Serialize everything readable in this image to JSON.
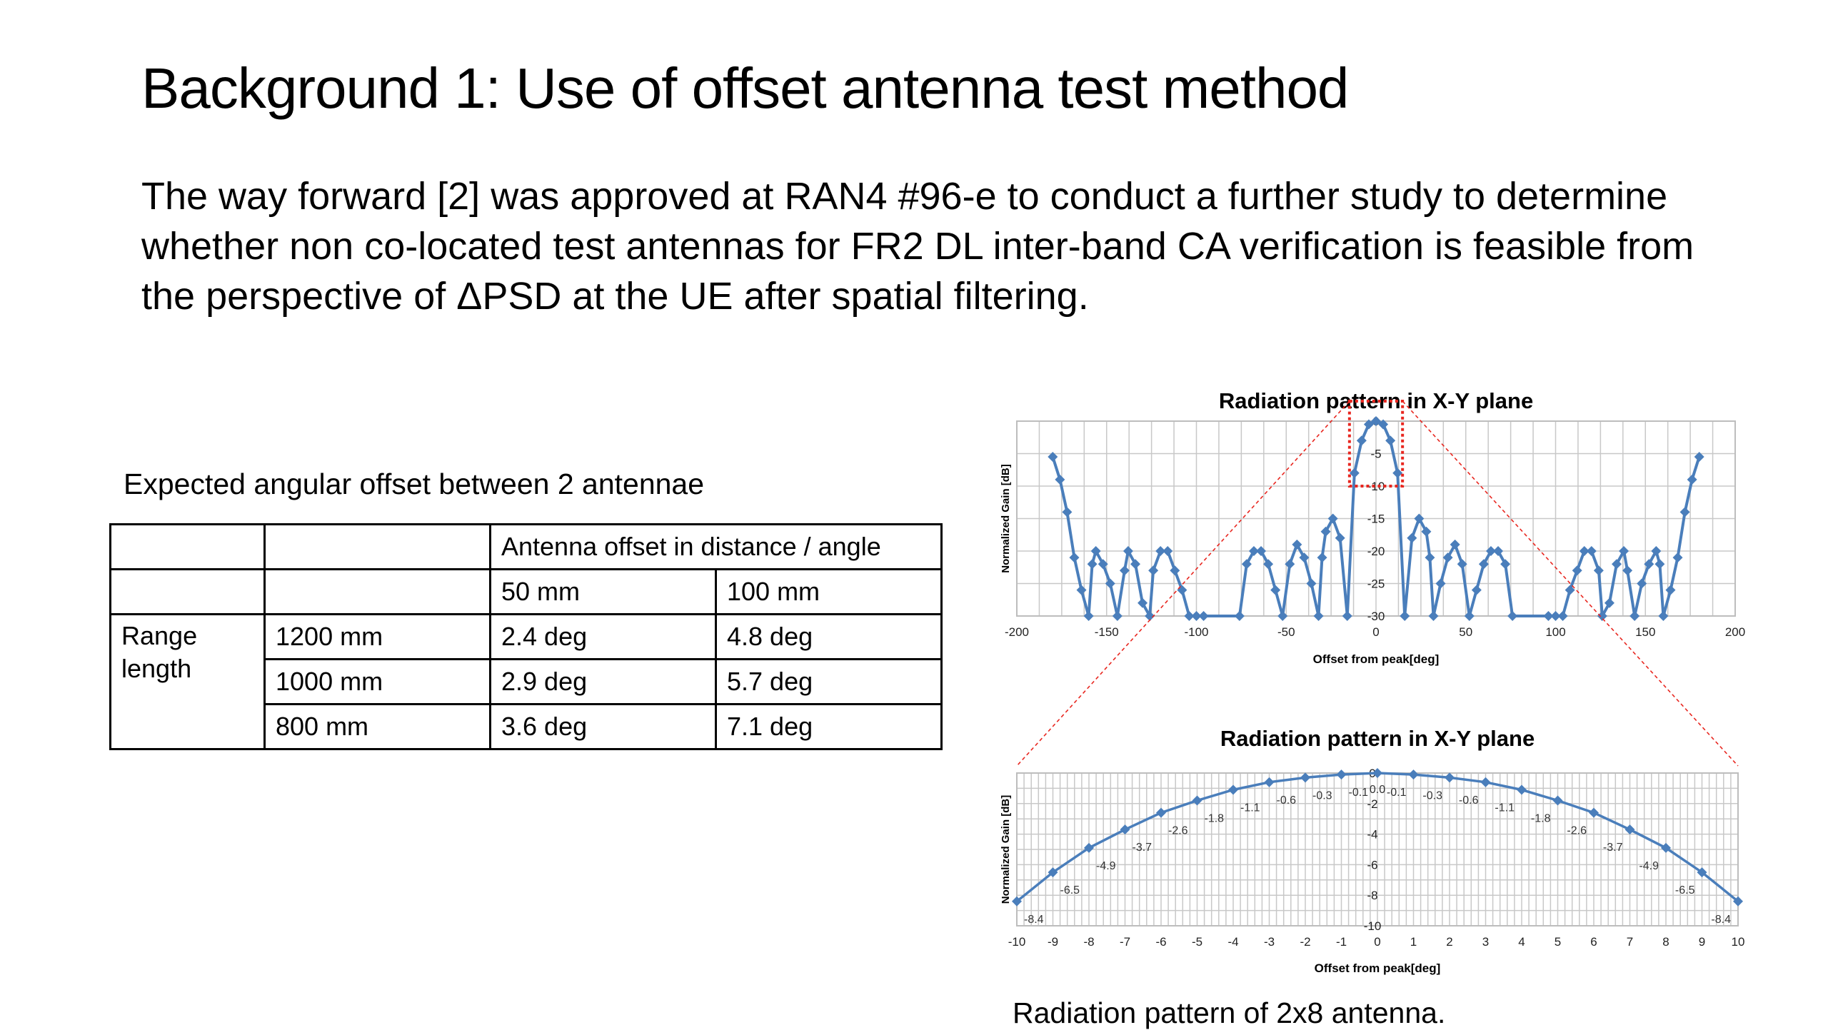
{
  "slide": {
    "title": "Background 1: Use of offset antenna test method",
    "body": "The way forward [2] was approved at RAN4 #96-e to conduct a further study to determine whether non co-located test antennas for FR2 DL inter-band CA verification is feasible from the perspective of ΔPSD at the UE after spatial filtering."
  },
  "table": {
    "caption": "Expected angular offset between 2 antennae",
    "group_header": "Antenna offset in distance / angle",
    "col_headers": [
      "50 mm",
      "100 mm"
    ],
    "row_group_label": "Range length",
    "rows": [
      {
        "range": "1200 mm",
        "v50": "2.4 deg",
        "v100": "4.8 deg"
      },
      {
        "range": "1000 mm",
        "v50": "2.9 deg",
        "v100": "5.7 deg"
      },
      {
        "range": "800 mm",
        "v50": "3.6 deg",
        "v100": "7.1 deg"
      }
    ]
  },
  "figure_caption": "Radiation pattern of 2x8 antenna.",
  "colors": {
    "series": "#4a7ebb",
    "zoom_box": "#e8261f",
    "grid": "#c8c8c8"
  },
  "chart_data": [
    {
      "type": "line",
      "title": "Radiation pattern in X-Y plane",
      "xlabel": "Offset from peak[deg]",
      "ylabel": "Normalized Gain [dB]",
      "xlim": [
        -200,
        200
      ],
      "ylim": [
        -30,
        0
      ],
      "xticks": [
        -200,
        -150,
        -100,
        -50,
        0,
        50,
        100,
        150,
        200
      ],
      "yticks": [
        0,
        -5,
        -10,
        -15,
        -20,
        -25,
        -30
      ],
      "grid": true,
      "series": [
        {
          "x": [
            -180,
            -176,
            -172,
            -168,
            -164,
            -160,
            -158,
            -156,
            -152,
            -148,
            -144,
            -140,
            -138,
            -134,
            -130,
            -126,
            -124,
            -120,
            -116,
            -112,
            -108,
            -104,
            -100,
            -96,
            -76,
            -72,
            -68,
            -64,
            -60,
            -56,
            -52,
            -48,
            -44,
            -40,
            -36,
            -32,
            -30,
            -28,
            -24,
            -20,
            -16,
            -12,
            -8,
            -4,
            0,
            4,
            8,
            12,
            16,
            20,
            24,
            28,
            30,
            32,
            36,
            40,
            44,
            48,
            52,
            56,
            60,
            64,
            68,
            72,
            76,
            96,
            100,
            104,
            108,
            112,
            116,
            120,
            124,
            126,
            130,
            134,
            138,
            140,
            144,
            148,
            152,
            156,
            158,
            160,
            164,
            168,
            172,
            176,
            180
          ],
          "y": [
            -5.5,
            -9,
            -14,
            -21,
            -26,
            -30,
            -22,
            -20,
            -22,
            -25,
            -30,
            -23,
            -20,
            -22,
            -28,
            -30,
            -23,
            -20,
            -20,
            -23,
            -26,
            -30,
            -30,
            -30,
            -30,
            -22,
            -20,
            -20,
            -22,
            -26,
            -30,
            -22,
            -19,
            -21,
            -25,
            -30,
            -21,
            -17,
            -15,
            -18,
            -30,
            -8,
            -3,
            -0.5,
            0,
            -0.5,
            -3,
            -8,
            -30,
            -18,
            -15,
            -17,
            -21,
            -30,
            -25,
            -21,
            -19,
            -22,
            -30,
            -26,
            -22,
            -20,
            -20,
            -22,
            -30,
            -30,
            -30,
            -30,
            -26,
            -23,
            -20,
            -20,
            -23,
            -30,
            -28,
            -22,
            -20,
            -23,
            -30,
            -25,
            -22,
            -20,
            -22,
            -30,
            -26,
            -21,
            -14,
            -9,
            -5.5
          ]
        }
      ]
    },
    {
      "type": "line",
      "title": "Radiation pattern in X-Y plane",
      "xlabel": "Offset from peak[deg]",
      "ylabel": "Normalized Gain [dB]",
      "xlim": [
        -10,
        10
      ],
      "ylim": [
        -10,
        0
      ],
      "xticks": [
        -10,
        -9,
        -8,
        -7,
        -6,
        -5,
        -4,
        -3,
        -2,
        -1,
        0,
        1,
        2,
        3,
        4,
        5,
        6,
        7,
        8,
        9,
        10
      ],
      "yticks": [
        0,
        -2,
        -4,
        -6,
        -8,
        -10
      ],
      "grid": true,
      "series": [
        {
          "x": [
            -10,
            -9,
            -8,
            -7,
            -6,
            -5,
            -4,
            -3,
            -2,
            -1,
            0,
            1,
            2,
            3,
            4,
            5,
            6,
            7,
            8,
            9,
            10
          ],
          "y": [
            -8.4,
            -6.5,
            -4.9,
            -3.7,
            -2.6,
            -1.8,
            -1.1,
            -0.6,
            -0.3,
            -0.1,
            0.0,
            -0.1,
            -0.3,
            -0.6,
            -1.1,
            -1.8,
            -2.6,
            -3.7,
            -4.9,
            -6.5,
            -8.4
          ],
          "labels": [
            "-8.4",
            "-6.5",
            "-4.9",
            "-3.7",
            "-2.6",
            "-1.8",
            "-1.1",
            "-0.6",
            "-0.3",
            "-0.1",
            "0.0",
            "-0.1",
            "-0.3",
            "-0.6",
            "-1.1",
            "-1.8",
            "-2.6",
            "-3.7",
            "-4.9",
            "-6.5",
            "-8.4"
          ]
        }
      ]
    }
  ]
}
